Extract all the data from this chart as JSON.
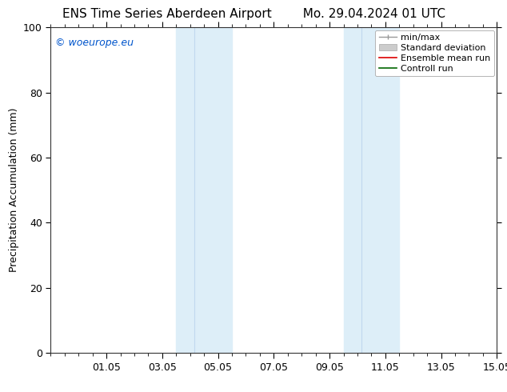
{
  "title_left": "ENS Time Series Aberdeen Airport",
  "title_right": "Mo. 29.04.2024 01 UTC",
  "ylabel": "Precipitation Accumulation (mm)",
  "ylim": [
    0,
    100
  ],
  "yticks": [
    0,
    20,
    40,
    60,
    80,
    100
  ],
  "xlim": [
    0.0,
    16.0
  ],
  "x_tick_labels": [
    "01.05",
    "03.05",
    "05.05",
    "07.05",
    "09.05",
    "11.05",
    "13.05",
    "15.05"
  ],
  "x_tick_positions": [
    2,
    4,
    6,
    8,
    10,
    12,
    14,
    16
  ],
  "shaded_regions": [
    {
      "x_start": 4.5,
      "x_end": 5.0,
      "color": "#ddeef8"
    },
    {
      "x_start": 5.0,
      "x_end": 6.5,
      "color": "#ddeef8"
    },
    {
      "x_start": 10.5,
      "x_end": 11.0,
      "color": "#ddeef8"
    },
    {
      "x_start": 11.0,
      "x_end": 12.5,
      "color": "#ddeef8"
    }
  ],
  "shaded_pairs": [
    {
      "x_start": 4.5,
      "x_mid": 5.2,
      "x_end": 6.5
    },
    {
      "x_start": 10.5,
      "x_mid": 11.2,
      "x_end": 12.5
    }
  ],
  "legend_entries": [
    {
      "label": "min/max",
      "color": "#999999",
      "lw": 1.0,
      "style": "minmax"
    },
    {
      "label": "Standard deviation",
      "color": "#cccccc",
      "lw": 5,
      "style": "band"
    },
    {
      "label": "Ensemble mean run",
      "color": "#dd0000",
      "lw": 1.2,
      "style": "line"
    },
    {
      "label": "Controll run",
      "color": "#006600",
      "lw": 1.2,
      "style": "line"
    }
  ],
  "watermark": "© woeurope.eu",
  "watermark_color": "#0055cc",
  "background_color": "#ffffff",
  "plot_bg_color": "#ffffff",
  "title_fontsize": 11,
  "label_fontsize": 9,
  "tick_fontsize": 9,
  "legend_fontsize": 8
}
